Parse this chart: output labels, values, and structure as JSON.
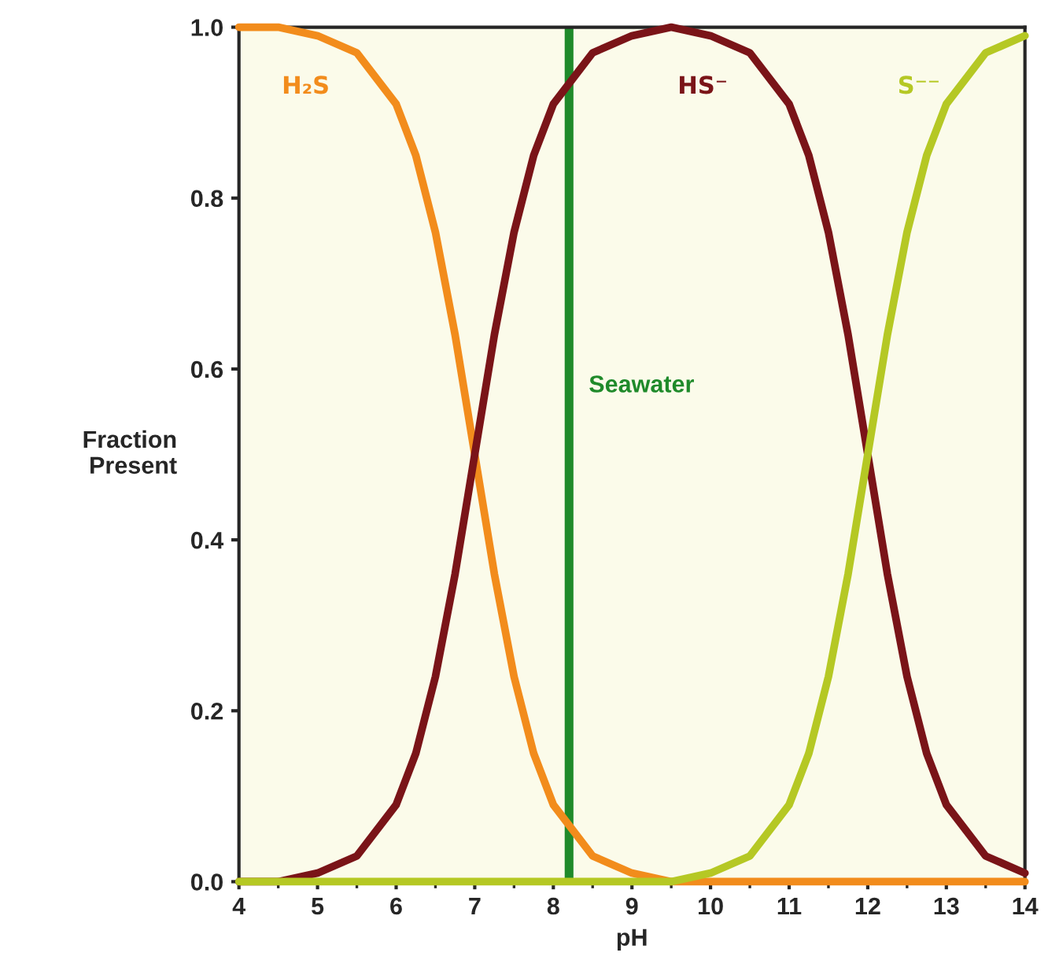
{
  "chart_data": {
    "type": "line",
    "xlabel": "pH",
    "ylabel": "Fraction\nPresent",
    "x": [
      4,
      4.5,
      5,
      5.5,
      6,
      6.25,
      6.5,
      6.75,
      7,
      7.25,
      7.5,
      7.75,
      8,
      8.5,
      9,
      9.5,
      10,
      10.5,
      11,
      11.25,
      11.5,
      11.75,
      12,
      12.25,
      12.5,
      12.75,
      13,
      13.5,
      14
    ],
    "series": [
      {
        "name": "H₂S",
        "color": "#f28c1c",
        "values": [
          1,
          1,
          0.99,
          0.97,
          0.91,
          0.85,
          0.76,
          0.64,
          0.5,
          0.36,
          0.24,
          0.15,
          0.09,
          0.03,
          0.01,
          0,
          0,
          0,
          0,
          0,
          0,
          0,
          0,
          0,
          0,
          0,
          0,
          0,
          0
        ]
      },
      {
        "name": "HS⁻",
        "color": "#7a1418",
        "values": [
          0,
          0,
          0.01,
          0.03,
          0.09,
          0.15,
          0.24,
          0.36,
          0.5,
          0.64,
          0.76,
          0.85,
          0.91,
          0.97,
          0.99,
          1,
          0.99,
          0.97,
          0.91,
          0.85,
          0.76,
          0.64,
          0.5,
          0.36,
          0.24,
          0.15,
          0.09,
          0.03,
          0.01
        ]
      },
      {
        "name": "S⁻⁻",
        "color": "#b5c824",
        "values": [
          0,
          0,
          0,
          0,
          0,
          0,
          0,
          0,
          0,
          0,
          0,
          0,
          0,
          0,
          0,
          0,
          0.01,
          0.03,
          0.09,
          0.15,
          0.24,
          0.36,
          0.5,
          0.64,
          0.76,
          0.85,
          0.91,
          0.97,
          0.99
        ]
      }
    ],
    "xlim": [
      4,
      14
    ],
    "xticks": [
      4,
      5,
      6,
      7,
      8,
      9,
      10,
      11,
      12,
      13,
      14
    ],
    "ylim": [
      0,
      1
    ],
    "yticks": [
      {
        "value": 0,
        "label": "0.0"
      },
      {
        "value": 0.2,
        "label": "0.2"
      },
      {
        "value": 0.4,
        "label": "0.4"
      },
      {
        "value": 0.6,
        "label": "0.6"
      },
      {
        "value": 0.8,
        "label": "0.8"
      },
      {
        "value": 1,
        "label": "1.0"
      }
    ],
    "ref_lines": [
      {
        "axis": "x",
        "value": 8.2,
        "label": "Seawater",
        "color": "#1f8a2a"
      }
    ],
    "grid": false,
    "legend": false
  }
}
